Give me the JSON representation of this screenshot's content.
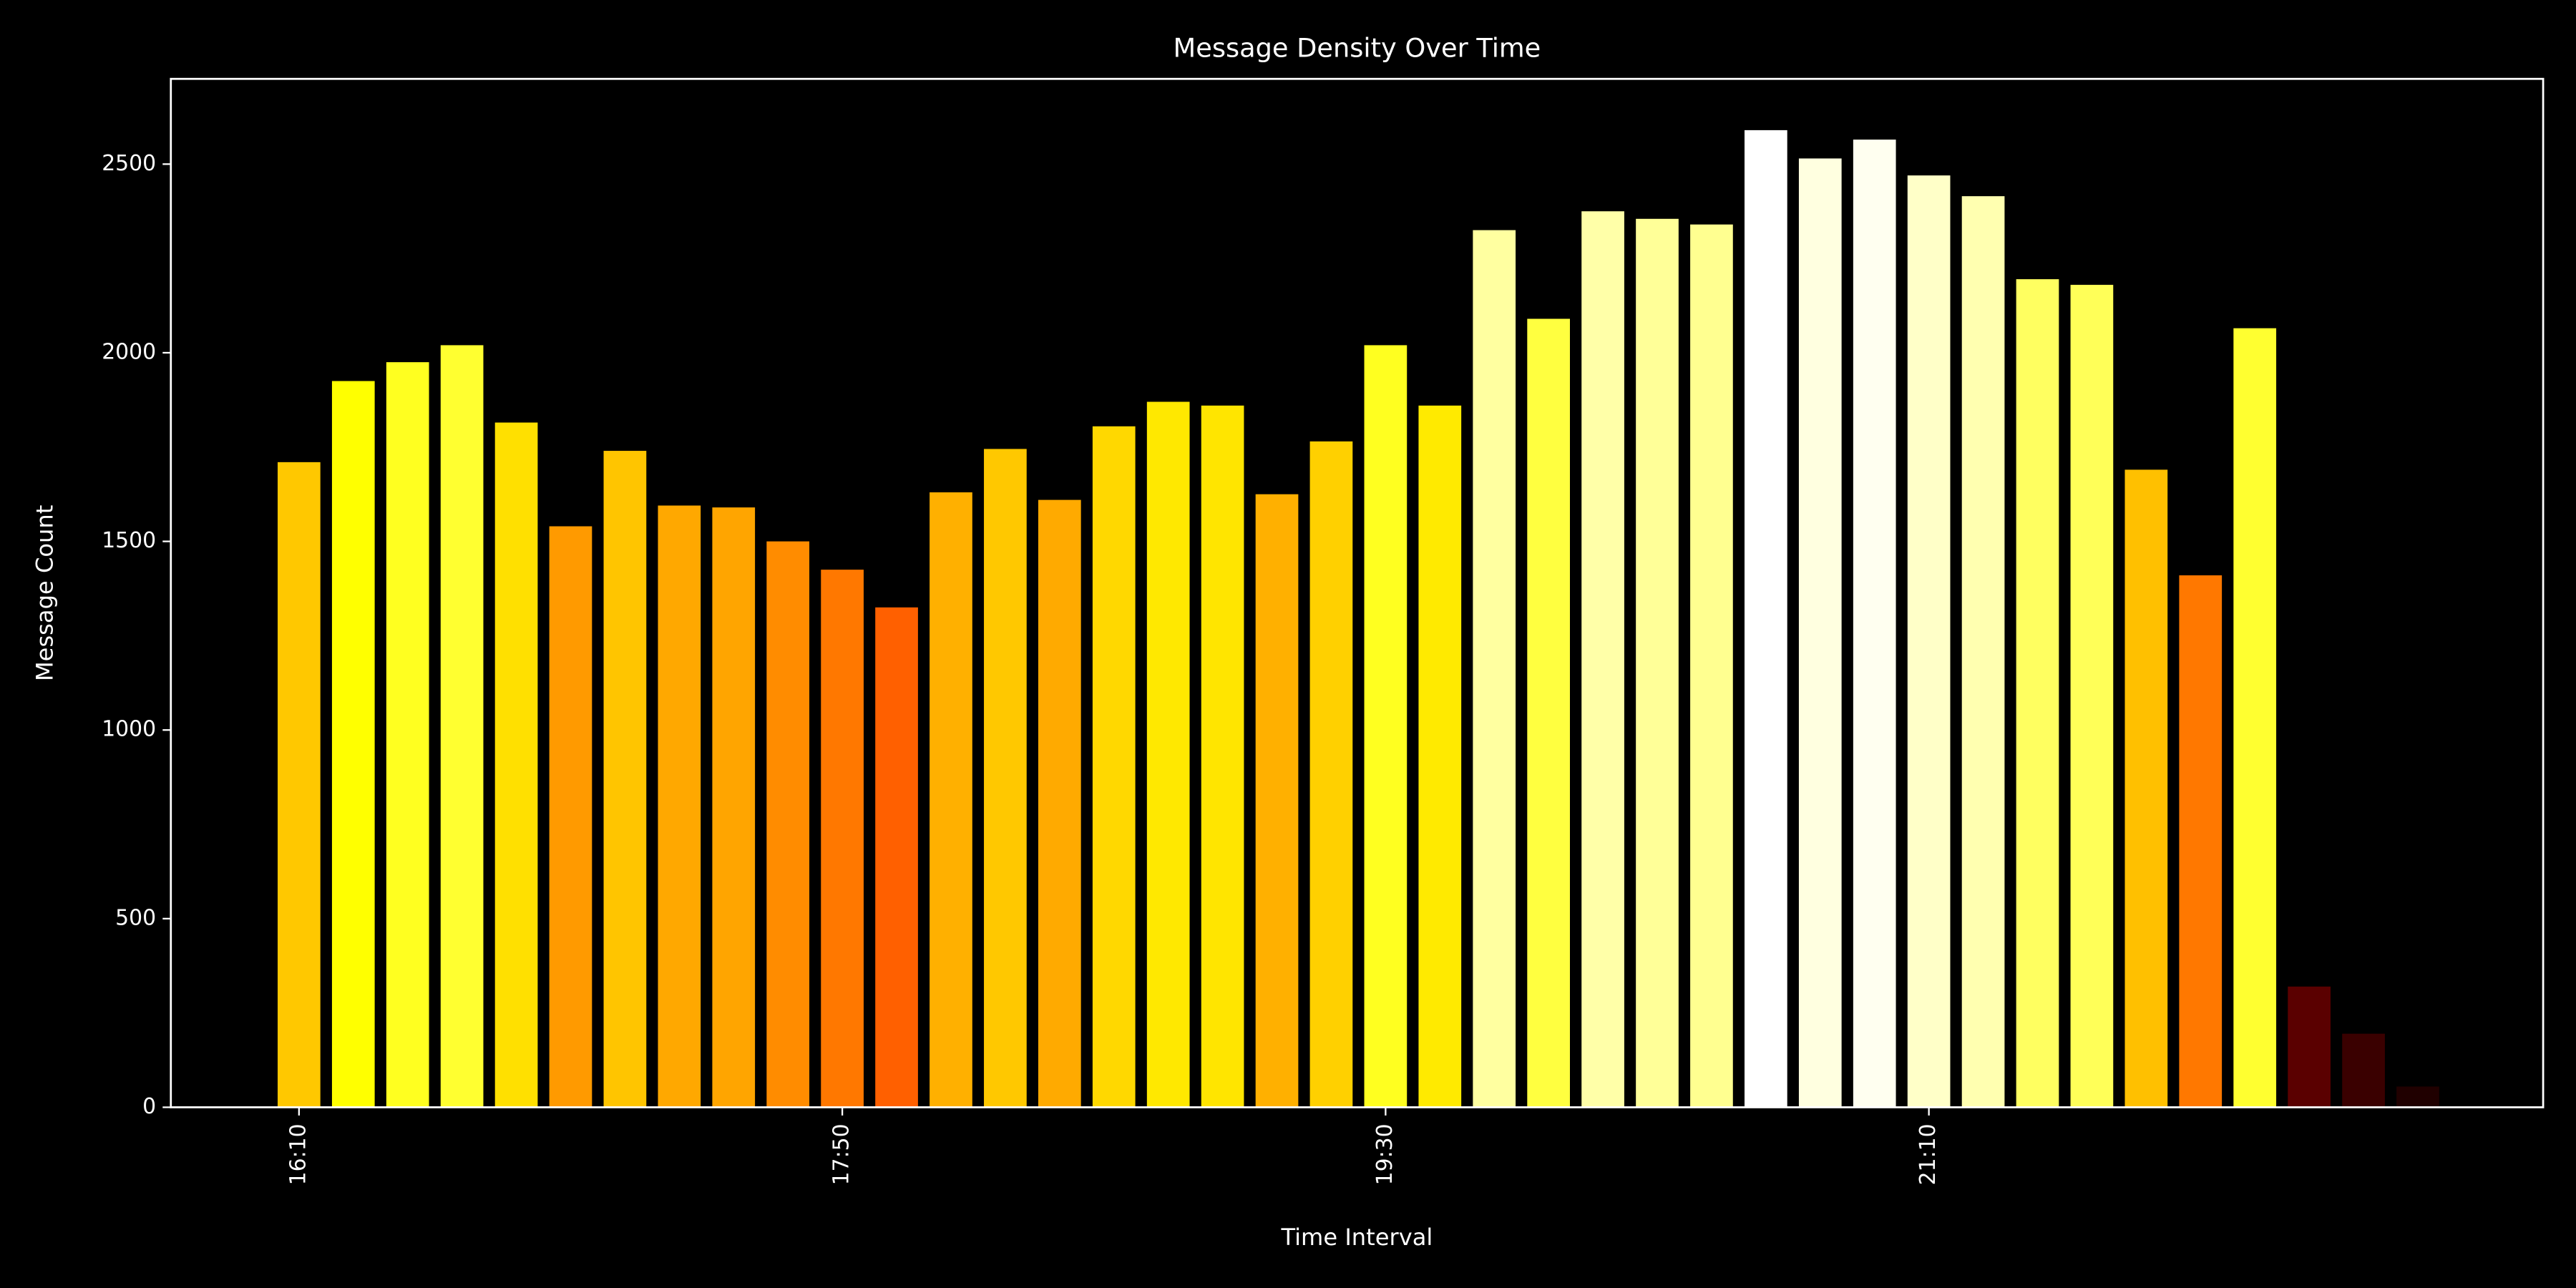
{
  "chart_data": {
    "type": "bar",
    "title": "Message Density Over Time",
    "x_label": "Time Interval",
    "y_label": "Message Count",
    "categories": [
      "16:10",
      null,
      null,
      null,
      null,
      null,
      null,
      null,
      null,
      null,
      "17:50",
      null,
      null,
      null,
      null,
      null,
      null,
      null,
      null,
      null,
      "19:30",
      null,
      null,
      null,
      null,
      null,
      null,
      null,
      null,
      null,
      "21:10",
      null,
      null,
      null,
      null,
      null,
      null,
      null,
      null,
      null
    ],
    "values": [
      1710,
      1925,
      1975,
      2020,
      1815,
      1540,
      1740,
      1595,
      1590,
      1500,
      1425,
      1325,
      1630,
      1745,
      1610,
      1805,
      1870,
      1860,
      1625,
      1765,
      2020,
      1860,
      2325,
      2090,
      2375,
      2355,
      2340,
      2590,
      2515,
      2565,
      2470,
      2415,
      2195,
      2180,
      1690,
      1410,
      2065,
      320,
      195,
      55
    ],
    "colors": [
      "#ffc800",
      "#ffff00",
      "#ffff20",
      "#ffff30",
      "#ffe000",
      "#ff9a00",
      "#ffc500",
      "#ffa800",
      "#ffa500",
      "#ff8c00",
      "#ff7800",
      "#ff6000",
      "#ffb000",
      "#ffc800",
      "#ffaa00",
      "#ffd800",
      "#ffe800",
      "#ffe500",
      "#ffb000",
      "#ffd000",
      "#ffff20",
      "#ffea00",
      "#ffffa0",
      "#ffff40",
      "#ffffa8",
      "#ffff98",
      "#ffff90",
      "#ffffff",
      "#ffffe0",
      "#fffff0",
      "#ffffc8",
      "#ffffb0",
      "#ffff60",
      "#ffff58",
      "#ffc000",
      "#ff7800",
      "#ffff30",
      "#5a0000",
      "#3a0000",
      "#200000"
    ],
    "ylim": [
      0,
      2726
    ],
    "yticks": [
      0,
      500,
      1000,
      1500,
      2000,
      2500
    ]
  }
}
